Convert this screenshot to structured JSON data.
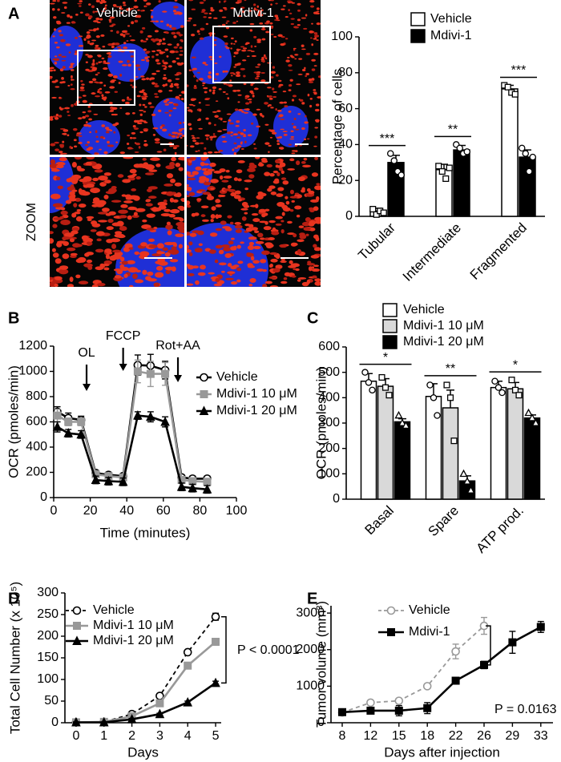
{
  "images": {
    "columns": [
      "Vehicle",
      "Mdivi-1"
    ],
    "row_label": "ZOOM"
  },
  "chart_data": [
    {
      "panel": "A",
      "type": "bar",
      "y_label": "Percentage of cells",
      "categories": [
        "Tubular",
        "Intermediate",
        "Fragmented"
      ],
      "series": [
        {
          "name": "Vehicle",
          "color": "#ffffff",
          "point_marker": "square",
          "values": [
            3,
            26,
            71
          ],
          "errors": [
            1.5,
            3,
            2
          ],
          "points": [
            [
              4,
              1,
              3,
              2
            ],
            [
              28,
              25,
              21,
              27
            ],
            [
              73,
              72,
              69,
              68
            ]
          ]
        },
        {
          "name": "Mdivi-1",
          "color": "#000000",
          "point_marker": "circle",
          "values": [
            30,
            37,
            33
          ],
          "errors": [
            4,
            2.5,
            4
          ],
          "points": [
            [
              35,
              31,
              25,
              23
            ],
            [
              40,
              38,
              35,
              36
            ],
            [
              38,
              35,
              25,
              33
            ]
          ]
        }
      ],
      "significance": [
        "***",
        "**",
        "***"
      ],
      "ylim": [
        0,
        100
      ],
      "yticks": [
        0,
        20,
        40,
        60,
        80,
        100
      ]
    },
    {
      "panel": "B",
      "type": "line",
      "x_label": "Time (minutes)",
      "y_label": "OCR (pmoles/min)",
      "x": [
        2,
        8,
        15,
        23,
        30,
        38,
        46,
        53,
        61,
        70,
        76,
        84
      ],
      "series": [
        {
          "name": "Vehicle",
          "color": "#000000",
          "marker": "circle-open",
          "values": [
            680,
            630,
            615,
            195,
            180,
            170,
            1050,
            1045,
            1010,
            160,
            150,
            150
          ],
          "errors": [
            40,
            40,
            30,
            20,
            20,
            20,
            80,
            90,
            70,
            20,
            20,
            20
          ]
        },
        {
          "name": "Mdivi-1 10 μM",
          "color": "#999999",
          "marker": "square",
          "values": [
            650,
            600,
            600,
            185,
            170,
            160,
            1000,
            980,
            980,
            140,
            130,
            125
          ],
          "errors": [
            50,
            30,
            30,
            20,
            20,
            20,
            90,
            100,
            90,
            20,
            20,
            20
          ]
        },
        {
          "name": "Mdivi-1 20 μM",
          "color": "#000000",
          "marker": "triangle",
          "values": [
            560,
            510,
            500,
            140,
            130,
            125,
            650,
            640,
            600,
            85,
            75,
            65
          ],
          "errors": [
            40,
            30,
            30,
            30,
            30,
            30,
            30,
            40,
            40,
            30,
            30,
            30
          ]
        }
      ],
      "annotations": [
        {
          "text": "OL",
          "x": 18
        },
        {
          "text": "FCCP",
          "x": 38
        },
        {
          "text": "Rot+AA",
          "x": 68
        }
      ],
      "xlim": [
        0,
        100
      ],
      "xticks": [
        0,
        20,
        40,
        60,
        80,
        100
      ],
      "ylim": [
        0,
        1200
      ],
      "yticks": [
        0,
        200,
        400,
        600,
        800,
        1000,
        1200
      ]
    },
    {
      "panel": "C",
      "type": "bar",
      "y_label": "OCR (pmoles/min)",
      "categories": [
        "Basal",
        "Spare",
        "ATP prod."
      ],
      "series": [
        {
          "name": "Vehicle",
          "color": "#ffffff",
          "point_marker": "circle",
          "values": [
            465,
            405,
            440
          ],
          "errors": [
            30,
            50,
            25
          ],
          "points": [
            [
              500,
              460,
              430
            ],
            [
              450,
              400,
              330
            ],
            [
              465,
              440,
              420
            ]
          ]
        },
        {
          "name": "Mdivi-1 10 μM",
          "color": "#d9d9d9",
          "point_marker": "square",
          "values": [
            445,
            360,
            435
          ],
          "errors": [
            30,
            70,
            25
          ],
          "points": [
            [
              480,
              440,
              410
            ],
            [
              450,
              400,
              230
            ],
            [
              470,
              430,
              410
            ]
          ]
        },
        {
          "name": "Mdivi-1 20 μM",
          "color": "#000000",
          "point_marker": "triangle",
          "values": [
            305,
            72,
            320
          ],
          "errors": [
            12,
            20,
            12
          ],
          "points": [
            [
              330,
              300,
              290
            ],
            [
              100,
              70,
              35
            ],
            [
              340,
              320,
              300
            ]
          ]
        }
      ],
      "significance": [
        "*",
        "**",
        "*"
      ],
      "ylim": [
        0,
        600
      ],
      "yticks": [
        0,
        100,
        200,
        300,
        400,
        500,
        600
      ]
    },
    {
      "panel": "D",
      "type": "line",
      "x_label": "Days",
      "y_label": "Total Cell Number (x 10⁵)",
      "x": [
        0,
        1,
        2,
        3,
        4,
        5
      ],
      "series": [
        {
          "name": "Vehicle",
          "color": "#000000",
          "marker": "circle-open",
          "dashed": true,
          "values": [
            1,
            2,
            20,
            62,
            163,
            245
          ],
          "errors": [
            2,
            2,
            3,
            3,
            4,
            8
          ]
        },
        {
          "name": "Mdivi-1 10 μM",
          "color": "#999999",
          "marker": "square",
          "values": [
            1,
            2,
            15,
            45,
            132,
            187
          ],
          "errors": [
            1,
            2,
            3,
            3,
            5,
            8
          ]
        },
        {
          "name": "Mdivi-1 20 μM",
          "color": "#000000",
          "marker": "triangle",
          "values": [
            1,
            1,
            8,
            20,
            47,
            92
          ],
          "errors": [
            1,
            1,
            2,
            2,
            3,
            4
          ]
        }
      ],
      "annotation": "P < 0.0001",
      "xlim": [
        -0.4,
        5.2
      ],
      "xticks": [
        0,
        1,
        2,
        3,
        4,
        5
      ],
      "ylim": [
        0,
        300
      ],
      "yticks": [
        0,
        50,
        100,
        150,
        200,
        250,
        300
      ]
    },
    {
      "panel": "E",
      "type": "line",
      "x_label": "Days after injection",
      "y_label": "Tumor volume (mm³)",
      "categories": [
        "8",
        "12",
        "15",
        "18",
        "22",
        "26",
        "29",
        "33"
      ],
      "series": [
        {
          "name": "Vehicle",
          "color": "#999999",
          "marker": "circle-open",
          "dashed": true,
          "values": [
            280,
            550,
            600,
            1000,
            1950,
            2650,
            null,
            null
          ],
          "errors": [
            40,
            60,
            60,
            60,
            200,
            230,
            null,
            null
          ]
        },
        {
          "name": "Mdivi-1",
          "color": "#000000",
          "marker": "square",
          "values": [
            290,
            330,
            330,
            400,
            1150,
            1580,
            2200,
            2620
          ],
          "errors": [
            40,
            80,
            140,
            150,
            80,
            100,
            300,
            150
          ]
        }
      ],
      "annotation": "P = 0.0163",
      "ylim": [
        0,
        3200
      ],
      "yticks": [
        0,
        1000,
        2000,
        3000
      ]
    }
  ]
}
